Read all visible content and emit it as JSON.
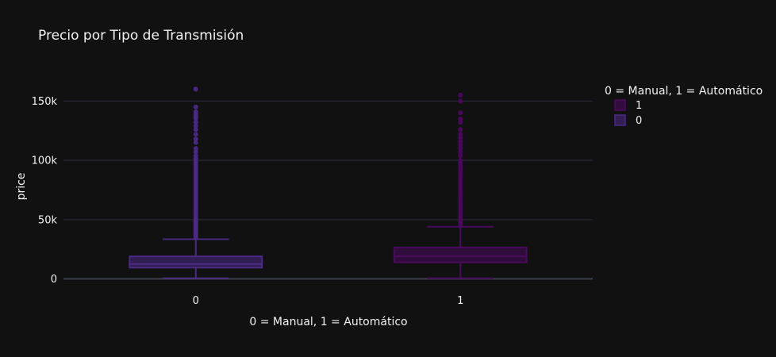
{
  "chart_data": {
    "type": "box",
    "title": "Precio por Tipo de Transmisión",
    "xlabel": "0 = Manual, 1 = Automático",
    "ylabel": "price",
    "categories": [
      "0",
      "1"
    ],
    "ylim": [
      -7000,
      175000
    ],
    "yticks": [
      {
        "value": 0,
        "label": "0"
      },
      {
        "value": 50000,
        "label": "50k"
      },
      {
        "value": 100000,
        "label": "100k"
      },
      {
        "value": 150000,
        "label": "150k"
      }
    ],
    "grid": true,
    "legend": {
      "title": "0 = Manual, 1 = Automático",
      "placement": "top-right",
      "entries": [
        "1",
        "0"
      ]
    },
    "series": [
      {
        "name": "0",
        "category": "0",
        "color": "#4b2a86",
        "min": 500,
        "q1": 9500,
        "median": 12500,
        "q3": 19000,
        "upper_fence": 33500,
        "outliers": [
          35000,
          36000,
          37000,
          38000,
          39000,
          40000,
          41000,
          42000,
          43000,
          44000,
          45000,
          46000,
          47000,
          48000,
          49000,
          50000,
          52000,
          54000,
          56000,
          58000,
          60000,
          62000,
          64000,
          66000,
          68000,
          70000,
          72000,
          74000,
          76000,
          78000,
          80000,
          82000,
          84000,
          86000,
          88000,
          90000,
          92000,
          94000,
          96000,
          98000,
          100000,
          102000,
          104000,
          107000,
          110000,
          115000,
          118000,
          122000,
          126000,
          129000,
          132000,
          135000,
          137000,
          139000,
          141000,
          145000,
          160000
        ]
      },
      {
        "name": "1",
        "category": "1",
        "color": "#4a0a5e",
        "min": 500,
        "q1": 14000,
        "median": 19000,
        "q3": 26500,
        "upper_fence": 44000,
        "outliers": [
          46000,
          48000,
          50000,
          52000,
          54000,
          56000,
          58000,
          60000,
          62000,
          64000,
          66000,
          68000,
          70000,
          72000,
          74000,
          76000,
          78000,
          80000,
          82000,
          84000,
          86000,
          88000,
          90000,
          92000,
          94000,
          96000,
          98000,
          100000,
          104000,
          107000,
          110000,
          113000,
          116000,
          119000,
          122000,
          126000,
          132000,
          135000,
          140000,
          150000,
          155000
        ]
      }
    ]
  }
}
